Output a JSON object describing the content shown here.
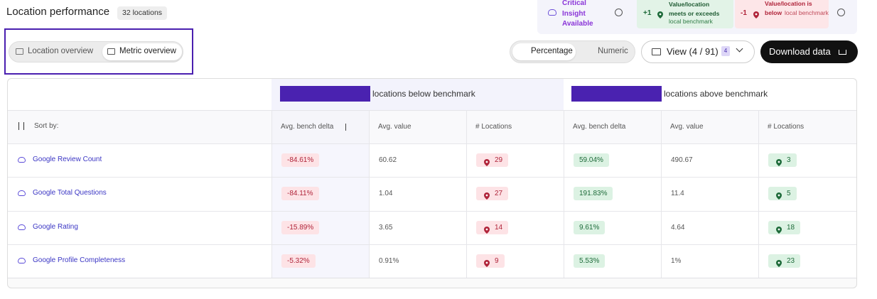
{
  "header": {
    "title": "Location performance",
    "badge": "32 locations"
  },
  "legend": {
    "critical": "Critical Insight Available",
    "plus": {
      "sign": "+1",
      "text": "Value/location meets or exceeds",
      "sub": "local benchmark"
    },
    "minus": {
      "sign": "-1",
      "text": "Value/location is",
      "strong": "below",
      "sub": "local benchmark"
    }
  },
  "tabs": [
    "Location overview",
    "Metric overview"
  ],
  "toggle": [
    "Percentage",
    "Numeric"
  ],
  "view": {
    "label": "View (4 / 91)",
    "count": "4"
  },
  "download": "Download data",
  "table": {
    "groups": [
      "locations below benchmark",
      "locations above benchmark"
    ],
    "sort_label": "Sort by:",
    "columns": [
      "Avg. bench delta",
      "Avg. value",
      "# Locations",
      "Avg. bench delta",
      "Avg. value",
      "# Locations"
    ],
    "rows": [
      {
        "metric": "Google Review Count",
        "below": [
          "-84.61%",
          "60.62",
          "29"
        ],
        "above": [
          "59.04%",
          "490.67",
          "3"
        ]
      },
      {
        "metric": "Google Total Questions",
        "below": [
          "-84.11%",
          "1.04",
          "27"
        ],
        "above": [
          "191.83%",
          "11.4",
          "5"
        ]
      },
      {
        "metric": "Google Rating",
        "below": [
          "-15.89%",
          "3.65",
          "14"
        ],
        "above": [
          "9.61%",
          "4.64",
          "18"
        ]
      },
      {
        "metric": "Google Profile Completeness",
        "below": [
          "-5.32%",
          "0.91%",
          "9"
        ],
        "above": [
          "5.53%",
          "1%",
          "23"
        ]
      }
    ]
  }
}
